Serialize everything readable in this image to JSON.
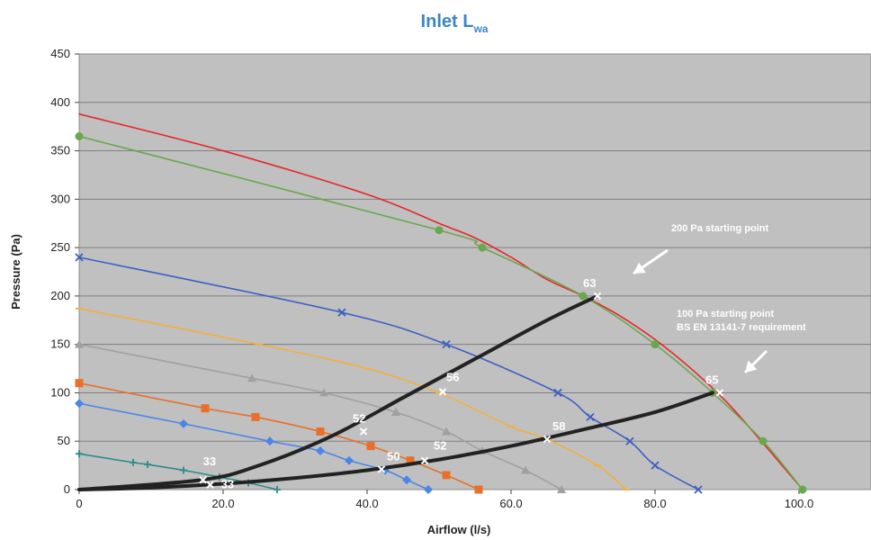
{
  "chart_data": {
    "type": "line",
    "title": "Inlet L",
    "title_sub": "wa",
    "title_color": "#3d85c6",
    "xlabel": "Airflow (l/s)",
    "ylabel": "Pressure (Pa)",
    "xlim": [
      0,
      110
    ],
    "ylim": [
      0,
      450
    ],
    "x_ticks": [
      0,
      20,
      40,
      60,
      80,
      100
    ],
    "x_tick_labels": [
      "0",
      "20.0",
      "40.0",
      "60.0",
      "80.0",
      "100.0"
    ],
    "y_ticks": [
      0,
      50,
      100,
      150,
      200,
      250,
      300,
      350,
      400,
      450
    ],
    "grid": true,
    "plot_background": "#c0c0c0",
    "series": [
      {
        "color": "#e8262a",
        "marker": "none",
        "x": [
          0,
          20,
          40,
          50,
          55,
          60,
          65,
          70,
          75,
          80,
          85,
          90,
          95,
          100.5
        ],
        "y": [
          388,
          350,
          305,
          275,
          260,
          240,
          217,
          200,
          180,
          155,
          125,
          90,
          48,
          0
        ]
      },
      {
        "color": "#6aa84f",
        "marker": "circle",
        "x": [
          0,
          50,
          56,
          70,
          80,
          88,
          95,
          100.5
        ],
        "y": [
          365,
          268,
          250,
          200,
          150,
          100,
          50,
          0
        ]
      },
      {
        "color": "#3d5fc4",
        "marker": "x",
        "x": [
          0,
          36.5,
          51,
          66.5,
          71,
          76.5,
          80,
          86
        ],
        "y": [
          240,
          183,
          150,
          100,
          75,
          50,
          25,
          0
        ]
      },
      {
        "color": "#f0b041",
        "marker": "dash",
        "x": [
          0,
          25,
          40,
          50,
          60,
          65,
          72,
          76
        ],
        "y": [
          187,
          150,
          125,
          100,
          65,
          52,
          25,
          0
        ]
      },
      {
        "color": "#a0a0a0",
        "marker": "triangle",
        "x": [
          0,
          24,
          34,
          44,
          51,
          56,
          62,
          67
        ],
        "y": [
          150,
          115,
          100,
          80,
          60,
          40,
          20,
          0
        ]
      },
      {
        "color": "#e8702a",
        "marker": "square",
        "x": [
          0,
          17.5,
          24.5,
          33.5,
          40.5,
          46,
          51,
          55.5
        ],
        "y": [
          110,
          84,
          75,
          60,
          45,
          30,
          15,
          0
        ]
      },
      {
        "color": "#4a86e8",
        "marker": "diamond",
        "x": [
          0,
          14.5,
          26.5,
          33.5,
          37.5,
          42.5,
          45.5,
          48.5
        ],
        "y": [
          89,
          68,
          50,
          40,
          30,
          20,
          10,
          0
        ]
      },
      {
        "color": "#2e8b8b",
        "marker": "plus",
        "x": [
          0,
          7.5,
          9.5,
          14.5,
          19.5,
          23.5,
          27.5
        ],
        "y": [
          37,
          28,
          26,
          20,
          13,
          7,
          0
        ]
      },
      {
        "color": "#222222",
        "marker": "none",
        "width": 4,
        "x": [
          0,
          17,
          25,
          35,
          45,
          55,
          65,
          72
        ],
        "y": [
          0,
          10,
          25,
          55,
          95,
          135,
          175,
          200
        ]
      },
      {
        "color": "#222222",
        "marker": "none",
        "width": 4,
        "x": [
          0,
          10,
          20,
          30,
          40,
          50,
          60,
          70,
          80,
          88
        ],
        "y": [
          0,
          2,
          6,
          12,
          20,
          31,
          45,
          62,
          80,
          100
        ]
      }
    ],
    "data_labels": [
      {
        "x": 17.2,
        "y": 10,
        "text": "33",
        "dx": 0,
        "dy": -16
      },
      {
        "x": 18.2,
        "y": 5,
        "text": "33",
        "dx": 12,
        "dy": 4
      },
      {
        "x": 39.5,
        "y": 60,
        "text": "52",
        "dx": -12,
        "dy": -10
      },
      {
        "x": 42,
        "y": 21,
        "text": "50",
        "dx": 6,
        "dy": -10
      },
      {
        "x": 48,
        "y": 30,
        "text": "52",
        "dx": 10,
        "dy": -12
      },
      {
        "x": 50.5,
        "y": 101,
        "text": "56",
        "dx": 4,
        "dy": -12
      },
      {
        "x": 65,
        "y": 52,
        "text": "58",
        "dx": 6,
        "dy": -10
      },
      {
        "x": 72,
        "y": 200,
        "text": "63",
        "dx": -16,
        "dy": -10
      },
      {
        "x": 89,
        "y": 100,
        "text": "65",
        "dx": -16,
        "dy": -10
      }
    ],
    "annotations": [
      {
        "lines": [
          "200 Pa starting point"
        ]
      },
      {
        "lines": [
          "100 Pa starting point",
          "BS EN 13141-7 requirement"
        ]
      }
    ]
  }
}
